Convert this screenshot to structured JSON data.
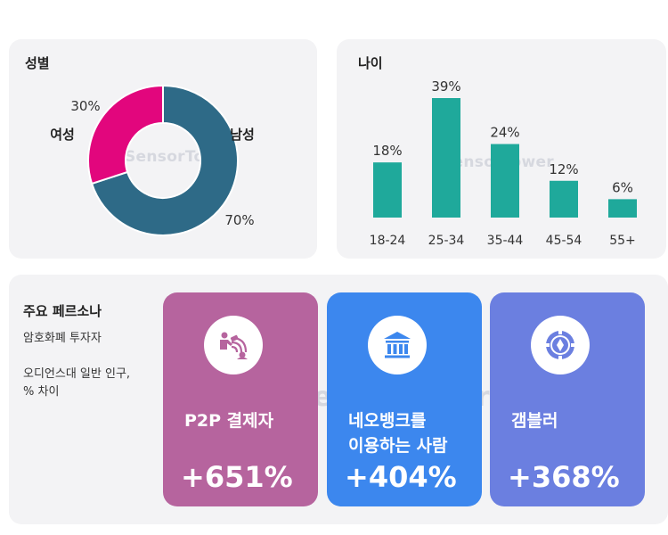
{
  "gender": {
    "title": "성별",
    "chart_data": {
      "type": "pie",
      "variant": "donut",
      "categories": [
        "남성",
        "여성"
      ],
      "values": [
        70,
        30
      ],
      "value_labels": [
        "70%",
        "30%"
      ],
      "colors": [
        "#2e6a87",
        "#e2067d"
      ]
    }
  },
  "age": {
    "title": "나이",
    "chart_data": {
      "type": "bar",
      "categories": [
        "18-24",
        "25-34",
        "35-44",
        "45-54",
        "55+"
      ],
      "values": [
        18,
        39,
        24,
        12,
        6
      ],
      "value_labels": [
        "18%",
        "39%",
        "24%",
        "12%",
        "6%"
      ],
      "color": "#1fa99b"
    }
  },
  "watermark": "SensorTower",
  "persona": {
    "title": "주요 페르소나",
    "subtitle1": "암호화폐 투자자",
    "subtitle2_line1": "오디언스대 일반 인구,",
    "subtitle2_line2": "% 차이",
    "tiles": [
      {
        "label_line1": "P2P 결제자",
        "label_line2": "",
        "value": "+651%",
        "icon": "p2p-payment-icon",
        "color": "#b6649e",
        "icon_color": "#b6649e"
      },
      {
        "label_line1": "네오뱅크를",
        "label_line2": "이용하는 사람",
        "value": "+404%",
        "icon": "bank-icon",
        "color": "#3c87ee",
        "icon_color": "#3c87ee"
      },
      {
        "label_line1": "갬블러",
        "label_line2": "",
        "value": "+368%",
        "icon": "casino-chip-icon",
        "color": "#6b7fe0",
        "icon_color": "#6b7fe0"
      }
    ]
  }
}
